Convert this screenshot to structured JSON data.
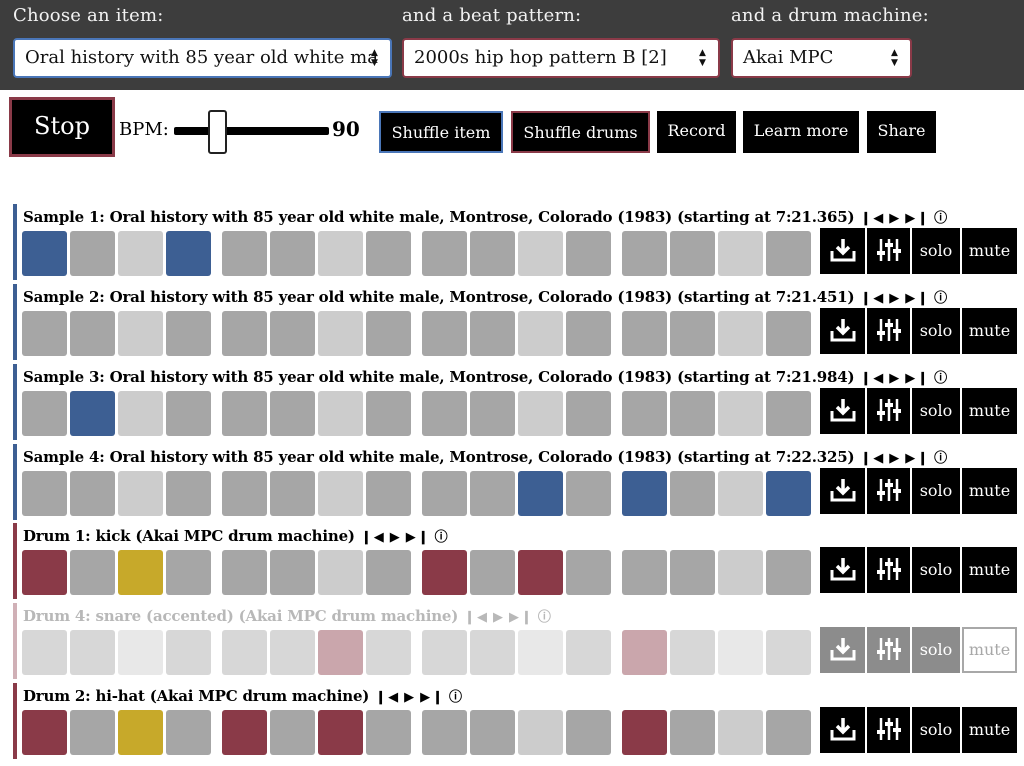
{
  "header": {
    "item_label": "Choose an item:",
    "pattern_label": "and a beat pattern:",
    "machine_label": "and a drum machine:",
    "item_value": "Oral history with 85 year old white ma",
    "pattern_value": "2000s hip hop pattern B [2]",
    "machine_value": "Akai MPC"
  },
  "controls": {
    "stop_label": "Stop",
    "bpm_label": "BPM:",
    "bpm_value": "90",
    "bpm_slider_fraction": 0.25,
    "shuffle_item_label": "Shuffle item",
    "shuffle_drums_label": "Shuffle drums",
    "record_label": "Record",
    "learn_more_label": "Learn more",
    "share_label": "Share"
  },
  "track_controls": {
    "prev_icon": "skip-previous-icon",
    "play_icon": "play-icon",
    "next_icon": "skip-next-icon",
    "info_icon": "info-icon",
    "download_icon": "download-icon",
    "mixer_icon": "sliders-icon",
    "solo_label": "solo",
    "mute_label": "mute"
  },
  "colors": {
    "header_bg": "#3d3d3d",
    "sample_accent": "#3d5f93",
    "drum_accent": "#8a3a48",
    "accent_gold": "#c7a92a",
    "pad_gray": "#a6a6a6",
    "pad_light": "#cccccc"
  },
  "tracks": [
    {
      "title": "Sample 1: Oral history with 85 year old white male, Montrose, Colorado (1983) (starting at 7:21.365)",
      "kind": "sample",
      "faded": false,
      "steps": [
        1,
        0,
        0,
        1,
        0,
        0,
        0,
        0,
        0,
        0,
        0,
        0,
        0,
        0,
        0,
        0
      ]
    },
    {
      "title": "Sample 2: Oral history with 85 year old white male, Montrose, Colorado (1983) (starting at 7:21.451)",
      "kind": "sample",
      "faded": false,
      "steps": [
        0,
        0,
        0,
        0,
        0,
        0,
        0,
        0,
        0,
        0,
        0,
        0,
        0,
        0,
        0,
        0
      ]
    },
    {
      "title": "Sample 3: Oral history with 85 year old white male, Montrose, Colorado (1983) (starting at 7:21.984)",
      "kind": "sample",
      "faded": false,
      "steps": [
        0,
        1,
        0,
        0,
        0,
        0,
        0,
        0,
        0,
        0,
        0,
        0,
        0,
        0,
        0,
        0
      ]
    },
    {
      "title": "Sample 4: Oral history with 85 year old white male, Montrose, Colorado (1983) (starting at 7:22.325)",
      "kind": "sample",
      "faded": false,
      "steps": [
        0,
        0,
        0,
        0,
        0,
        0,
        0,
        0,
        0,
        0,
        1,
        0,
        1,
        0,
        0,
        1
      ]
    },
    {
      "title": "Drum 1: kick (Akai MPC drum machine)",
      "kind": "drum",
      "faded": false,
      "steps": [
        1,
        0,
        2,
        0,
        0,
        0,
        0,
        0,
        1,
        0,
        1,
        0,
        0,
        0,
        0,
        0
      ]
    },
    {
      "title": "Drum 4: snare (accented) (Akai MPC drum machine)",
      "kind": "drum",
      "faded": true,
      "steps": [
        0,
        0,
        0,
        0,
        0,
        0,
        1,
        0,
        0,
        0,
        0,
        0,
        1,
        0,
        0,
        0
      ]
    },
    {
      "title": "Drum 2: hi-hat (Akai MPC drum machine)",
      "kind": "drum",
      "faded": false,
      "steps": [
        1,
        0,
        2,
        0,
        1,
        0,
        1,
        0,
        0,
        0,
        0,
        0,
        1,
        0,
        0,
        0
      ]
    }
  ]
}
